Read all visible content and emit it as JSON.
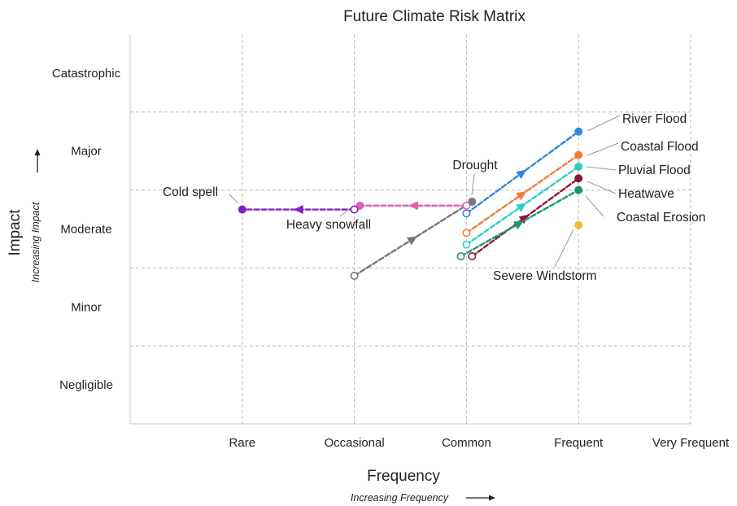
{
  "chart_data": {
    "type": "scatter",
    "title": "Future Climate Risk Matrix",
    "xlabel": "Frequency",
    "xlabel_sub": "Increasing Frequency",
    "ylabel": "Impact",
    "ylabel_sub": "Increasing Impact",
    "x_categories": [
      "Rare",
      "Occasional",
      "Common",
      "Frequent",
      "Very Frequent"
    ],
    "y_categories": [
      "Negligible",
      "Minor",
      "Moderate",
      "Major",
      "Catastrophic"
    ],
    "xlim": [
      0,
      5
    ],
    "ylim": [
      0.5,
      5.5
    ],
    "grid": true,
    "series": [
      {
        "name": "River Flood",
        "color": "#2e86de",
        "from": [
          3.0,
          3.2
        ],
        "to": [
          4.0,
          4.25
        ]
      },
      {
        "name": "Coastal Flood",
        "color": "#f07d3e",
        "from": [
          3.0,
          2.95
        ],
        "to": [
          4.0,
          3.95
        ]
      },
      {
        "name": "Pluvial Flood",
        "color": "#2ecfc0",
        "from": [
          3.0,
          2.8
        ],
        "to": [
          4.0,
          3.8
        ]
      },
      {
        "name": "Heatwave",
        "color": "#8b1a3a",
        "from": [
          3.05,
          2.65
        ],
        "to": [
          4.0,
          3.65
        ]
      },
      {
        "name": "Coastal Erosion",
        "color": "#1e9473",
        "from": [
          2.95,
          2.65
        ],
        "to": [
          4.0,
          3.5
        ]
      },
      {
        "name": "Severe Windstorm",
        "color": "#f5b732",
        "from": null,
        "to": [
          4.0,
          3.05
        ]
      },
      {
        "name": "Drought",
        "color": "#777777",
        "from": [
          2.0,
          2.4
        ],
        "to": [
          3.05,
          3.35
        ]
      },
      {
        "name": "Heavy snowfall",
        "color": "#e15fb4",
        "from": [
          3.0,
          3.3
        ],
        "to": [
          2.05,
          3.3
        ]
      },
      {
        "name": "Cold spell",
        "color": "#8023c4",
        "from": [
          2.0,
          3.25
        ],
        "to": [
          1.0,
          3.25
        ]
      }
    ]
  }
}
